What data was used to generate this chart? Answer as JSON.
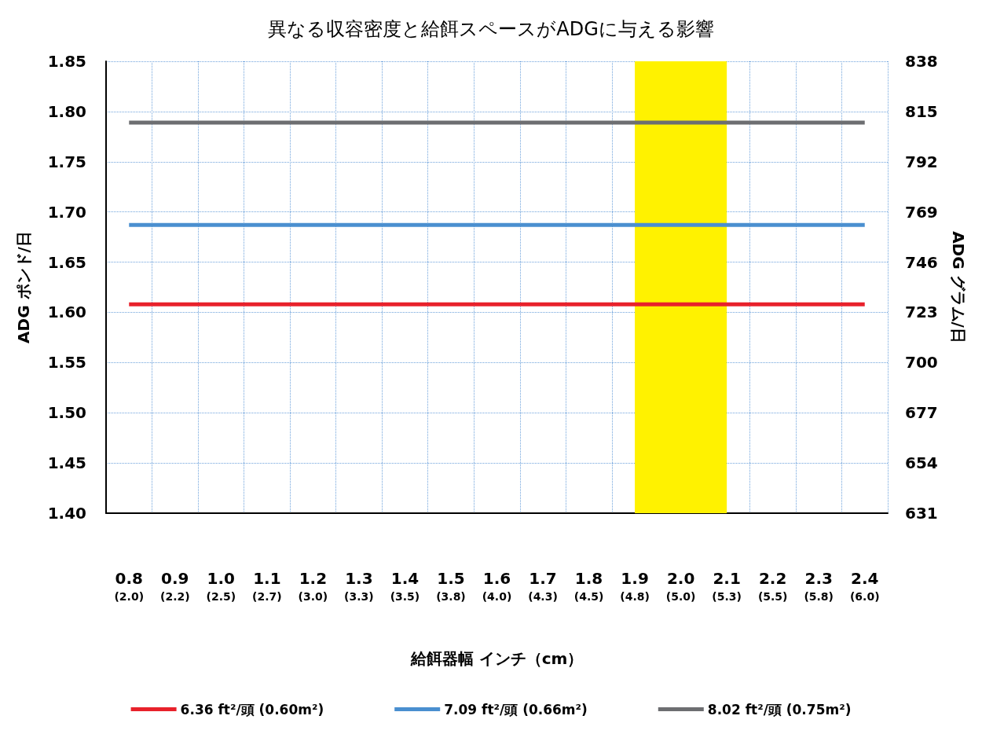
{
  "chart_data": {
    "type": "line",
    "title": "異なる収容密度と給餌スペースがADGに与える影響",
    "xlabel": "給餌器幅 インチ（cm）",
    "ylabel": "ADG ポンド/日",
    "y2label": "ADG グラム/日",
    "categories": [
      "0.8\n(2.0)",
      "0.9\n(2.2)",
      "1.0\n(2.5)",
      "1.1\n(2.7)",
      "1.2\n(3.0)",
      "1.3\n(3.3)",
      "1.4\n(3.5)",
      "1.5\n(3.8)",
      "1.6\n(4.0)",
      "1.7\n(4.3)",
      "1.8\n(4.5)",
      "1.9\n(4.8)",
      "2.0\n(5.0)",
      "2.1\n(5.3)",
      "2.2\n(5.5)",
      "2.3\n(5.8)",
      "2.4\n(6.0)"
    ],
    "ylim": [
      1.4,
      1.85
    ],
    "yticks": [
      {
        "value": 1.4,
        "label": "1.40"
      },
      {
        "value": 1.45,
        "label": "1.45"
      },
      {
        "value": 1.5,
        "label": "1.50"
      },
      {
        "value": 1.55,
        "label": "1.55"
      },
      {
        "value": 1.6,
        "label": "1.60"
      },
      {
        "value": 1.65,
        "label": "1.65"
      },
      {
        "value": 1.7,
        "label": "1.70"
      },
      {
        "value": 1.75,
        "label": "1.75"
      },
      {
        "value": 1.8,
        "label": "1.80"
      },
      {
        "value": 1.85,
        "label": "1.85"
      }
    ],
    "y2lim": [
      631,
      838
    ],
    "y2ticks": [
      631,
      654,
      677,
      700,
      723,
      746,
      769,
      792,
      815,
      838
    ],
    "grid": true,
    "legend": "bottom",
    "marker": "none",
    "line_style": "solid",
    "bands": [
      {
        "axis": "x",
        "from": "1.9\n(4.8)",
        "to": "2.1\n(5.3)",
        "color": "#fff200"
      }
    ],
    "series": [
      {
        "name": "6.36 ft²/頭 (0.60m²)",
        "color": "#e8212b",
        "values": [
          1.608,
          1.608,
          1.608,
          1.608,
          1.608,
          1.608,
          1.608,
          1.608,
          1.608,
          1.608,
          1.608,
          1.608,
          1.608,
          1.608,
          1.608,
          1.608,
          1.608
        ]
      },
      {
        "name": "7.09 ft²/頭 (0.66m²)",
        "color": "#4a8fd0",
        "values": [
          1.687,
          1.687,
          1.687,
          1.687,
          1.687,
          1.687,
          1.687,
          1.687,
          1.687,
          1.687,
          1.687,
          1.687,
          1.687,
          1.687,
          1.687,
          1.687,
          1.687
        ]
      },
      {
        "name": "8.02 ft²/頭 (0.75m²)",
        "color": "#6d6e71",
        "values": [
          1.789,
          1.789,
          1.789,
          1.789,
          1.789,
          1.789,
          1.789,
          1.789,
          1.789,
          1.789,
          1.789,
          1.789,
          1.789,
          1.789,
          1.789,
          1.789,
          1.789
        ]
      }
    ]
  }
}
